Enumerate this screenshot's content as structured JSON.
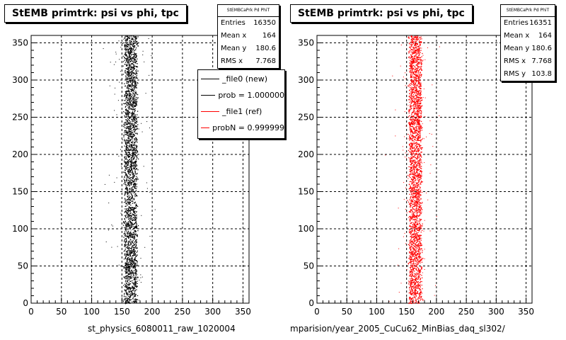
{
  "chart_data": [
    {
      "type": "scatter",
      "title": "StEMB primtrk: psi vs phi, tpc",
      "xlim": [
        0,
        360
      ],
      "ylim": [
        0,
        360
      ],
      "x_ticks": [
        "0",
        "50",
        "100",
        "150",
        "200",
        "250",
        "300",
        "350"
      ],
      "y_ticks": [
        "0",
        "50",
        "100",
        "150",
        "200",
        "250",
        "300",
        "350"
      ],
      "grid": true,
      "marker_color": "#000000",
      "band": {
        "x_center": 164,
        "x_core_width": 20,
        "x_spread_rms": 7.768
      },
      "stats": {
        "header": "StEMBCaPrk Pd PhiT",
        "rows": [
          {
            "label": "Entries",
            "value": "16350"
          },
          {
            "label": "Mean x",
            "value": "164"
          },
          {
            "label": "Mean y",
            "value": "180.6"
          },
          {
            "label": "RMS x",
            "value": "7.768"
          }
        ]
      },
      "legend": {
        "placement": "top-right",
        "entries": [
          {
            "label": "_file0 (new)",
            "color": "#000000"
          },
          {
            "label": "prob = 1.000000",
            "color": "#000000"
          },
          {
            "label": "_file1 (ref)",
            "color": "#ff0000"
          },
          {
            "label": "probN = 0.999999",
            "color": "#ff0000"
          }
        ]
      },
      "xlabel": "st_physics_6080011_raw_1020004"
    },
    {
      "type": "scatter",
      "title": "StEMB primtrk: psi vs phi, tpc",
      "xlim": [
        0,
        360
      ],
      "ylim": [
        0,
        360
      ],
      "x_ticks": [
        "0",
        "50",
        "100",
        "150",
        "200",
        "250",
        "300",
        "350"
      ],
      "y_ticks": [
        "0",
        "50",
        "100",
        "150",
        "200",
        "250",
        "300",
        "350"
      ],
      "grid": true,
      "marker_color": "#ff0000",
      "band": {
        "x_center": 164,
        "x_core_width": 20,
        "x_spread_rms": 7.768
      },
      "stats": {
        "header": "StEMBCaPrk Pd PhiT",
        "rows": [
          {
            "label": "Entries",
            "value": "16351"
          },
          {
            "label": "Mean x",
            "value": "164"
          },
          {
            "label": "Mean y",
            "value": "180.6"
          },
          {
            "label": "RMS x",
            "value": "7.768"
          },
          {
            "label": "RMS y",
            "value": "103.8"
          }
        ]
      },
      "xlabel": "mparision/year_2005_CuCu62_MinBias_daq_sl302/"
    }
  ]
}
